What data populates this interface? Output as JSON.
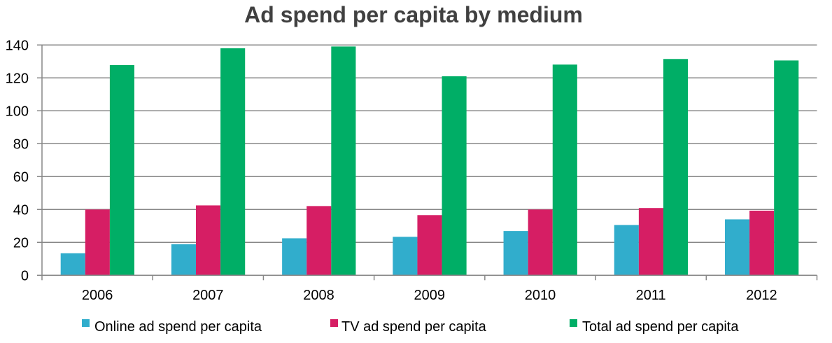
{
  "chart_data": {
    "type": "bar",
    "title": "Ad spend per capita by medium",
    "xlabel": "",
    "ylabel": "",
    "categories": [
      "2006",
      "2007",
      "2008",
      "2009",
      "2010",
      "2011",
      "2012"
    ],
    "ylim": [
      0,
      140
    ],
    "yticks": [
      0,
      20,
      40,
      60,
      80,
      100,
      120,
      140
    ],
    "ytick_labels": [
      "0",
      "20",
      "40",
      "60",
      "80",
      "100",
      "120",
      "140"
    ],
    "grid": true,
    "legend_position": "bottom",
    "series": [
      {
        "name": "Online ad spend per capita",
        "color": "#31ADCC",
        "values": [
          13.4,
          18.9,
          22.5,
          23.4,
          26.9,
          30.6,
          34.0
        ]
      },
      {
        "name": "TV ad spend per capita",
        "color": "#D61E64",
        "values": [
          40.0,
          42.5,
          42.1,
          36.6,
          40.0,
          40.9,
          39.3
        ]
      },
      {
        "name": "Total ad spend per capita",
        "color": "#00AE66",
        "values": [
          127.8,
          138.0,
          139.1,
          121.0,
          128.1,
          131.5,
          130.6
        ]
      }
    ]
  }
}
